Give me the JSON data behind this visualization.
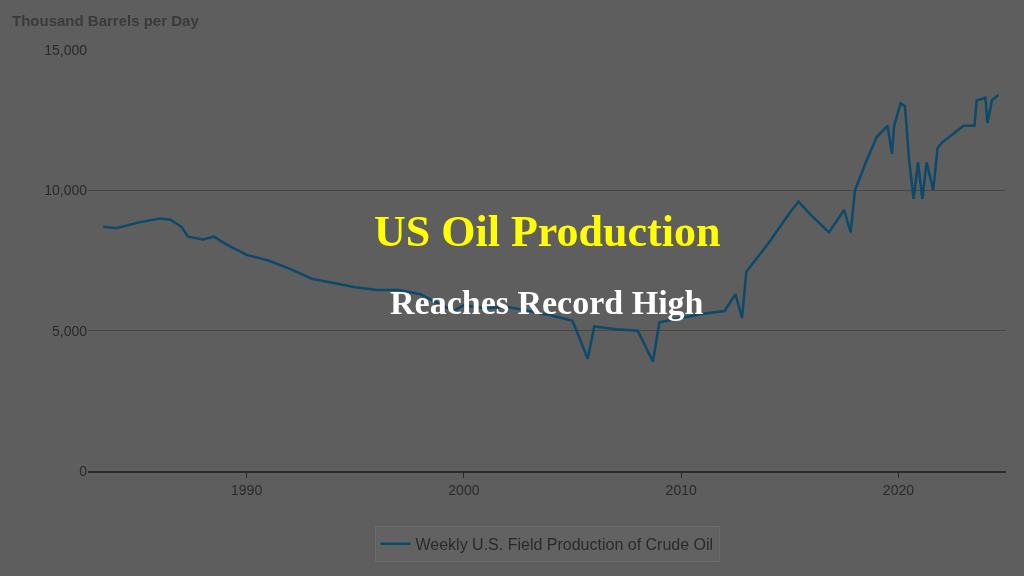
{
  "chart_data": {
    "type": "line",
    "title": "US Oil Production",
    "subtitle": "Reaches Record High",
    "ylabel": "Thousand Barrels per Day",
    "x": [
      1983.4,
      1984,
      1985,
      1986,
      1986.5,
      1987,
      1987.3,
      1988,
      1988.5,
      1989,
      1990,
      1991,
      1992,
      1993,
      1994,
      1995,
      1996,
      1997,
      1998,
      1999,
      1999.5,
      2000,
      2001,
      2002,
      2003,
      2004,
      2005,
      2005.7,
      2006,
      2007,
      2008,
      2008.7,
      2009,
      2010,
      2011,
      2012,
      2012.5,
      2012.8,
      2013,
      2014,
      2015,
      2015.4,
      2016,
      2016.8,
      2017.5,
      2017.8,
      2018,
      2018.5,
      2019,
      2019.5,
      2019.7,
      2019.8,
      2020.1,
      2020.3,
      2020.5,
      2020.7,
      2020.9,
      2021.1,
      2021.3,
      2021.6,
      2021.8,
      2022,
      2023,
      2023.5,
      2023.6,
      2024,
      2024.1,
      2024.3,
      2024.6
    ],
    "series": [
      {
        "name": "Weekly U.S. Field Production of Crude Oil",
        "color": "#0b4a6b",
        "values": [
          8700,
          8650,
          8850,
          9000,
          8950,
          8700,
          8350,
          8250,
          8350,
          8100,
          7700,
          7500,
          7200,
          6850,
          6700,
          6550,
          6450,
          6450,
          6300,
          5900,
          5700,
          5900,
          5800,
          5850,
          5700,
          5550,
          5350,
          4000,
          5150,
          5050,
          5000,
          3900,
          5300,
          5450,
          5600,
          5700,
          6300,
          5450,
          7100,
          8100,
          9200,
          9600,
          9100,
          8500,
          9300,
          8500,
          10000,
          11000,
          11900,
          12300,
          11300,
          12300,
          13100,
          13000,
          11000,
          9700,
          11000,
          9700,
          11000,
          10000,
          11500,
          11700,
          12300,
          12300,
          13200,
          13300,
          12400,
          13200,
          13400
        ]
      }
    ],
    "xlim": [
      1982.7,
      2024.95
    ],
    "xticks": [
      1990,
      2000,
      2010,
      2020
    ],
    "ylim": [
      0,
      15000
    ],
    "yticks": [
      {
        "value": 0,
        "label": "0"
      },
      {
        "value": 5000,
        "label": "5,000"
      },
      {
        "value": 10000,
        "label": "10,000"
      },
      {
        "value": 15000,
        "label": "15,000"
      }
    ],
    "grid": "y",
    "legend": "bottom",
    "marker": "none",
    "line_style": "solid"
  }
}
